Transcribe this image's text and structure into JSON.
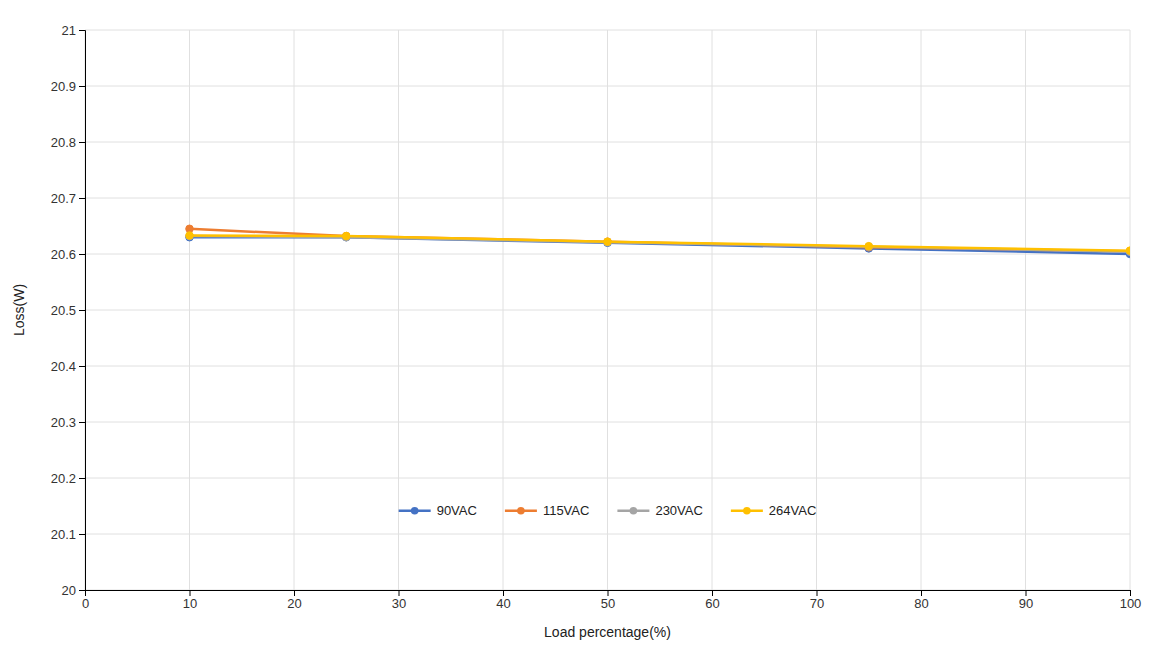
{
  "chart_data": {
    "type": "line",
    "x_label": "Load percentage(%)",
    "y_label": "Loss(W)",
    "x": [
      10,
      25,
      50,
      75,
      100
    ],
    "series": [
      {
        "name": "90VAC",
        "color": "#4472C4",
        "values": [
          20.63,
          20.63,
          20.62,
          20.61,
          20.6
        ]
      },
      {
        "name": "115VAC",
        "color": "#ED7D31",
        "values": [
          20.645,
          20.632,
          20.622,
          20.612,
          20.605
        ]
      },
      {
        "name": "230VAC",
        "color": "#A5A5A5",
        "values": [
          20.632,
          20.63,
          20.621,
          20.613,
          20.604
        ]
      },
      {
        "name": "264VAC",
        "color": "#FFC000",
        "values": [
          20.633,
          20.632,
          20.622,
          20.614,
          20.606
        ]
      }
    ],
    "xlim": [
      0,
      100
    ],
    "ylim": [
      20.0,
      21.0
    ],
    "xticks": [
      0,
      10,
      20,
      30,
      40,
      50,
      60,
      70,
      80,
      90,
      100
    ],
    "yticks": [
      20,
      20.1,
      20.2,
      20.3,
      20.4,
      20.5,
      20.6,
      20.7,
      20.8,
      20.9,
      21
    ],
    "grid": true,
    "legend": "bottom",
    "marker": "circle"
  }
}
